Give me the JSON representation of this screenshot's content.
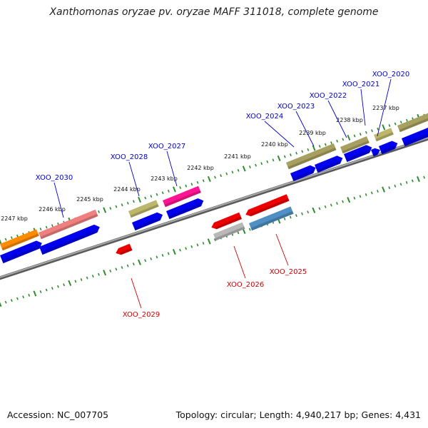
{
  "title": "Xanthomonas oryzae pv. oryzae MAFF 311018, complete genome",
  "footer": {
    "accession": "Accession: NC_007705",
    "summary": "Topology: circular; Length: 4,940,217 bp; Genes: 4,431"
  },
  "colors": {
    "backbone": "#808080",
    "tick": "#2e8b2e",
    "plus_label": "#0000cc",
    "minus_label": "#cc0000"
  },
  "kbp_ticks": [
    {
      "label": "2247 kbp",
      "coord": 2247
    },
    {
      "label": "2246 kbp",
      "coord": 2246
    },
    {
      "label": "2245 kbp",
      "coord": 2245
    },
    {
      "label": "2244 kbp",
      "coord": 2244
    },
    {
      "label": "2243 kbp",
      "coord": 2243
    },
    {
      "label": "2242 kbp",
      "coord": 2242
    },
    {
      "label": "2241 kbp",
      "coord": 2241
    },
    {
      "label": "2240 kbp",
      "coord": 2240
    },
    {
      "label": "2239 kbp",
      "coord": 2239
    },
    {
      "label": "2238 kbp",
      "coord": 2238
    },
    {
      "label": "2237 kbp",
      "coord": 2237
    }
  ],
  "genes": [
    {
      "id": "XOO_2020",
      "strand": "+"
    },
    {
      "id": "XOO_2021",
      "strand": "+"
    },
    {
      "id": "XOO_2022",
      "strand": "+"
    },
    {
      "id": "XOO_2023",
      "strand": "+"
    },
    {
      "id": "XOO_2024",
      "strand": "+"
    },
    {
      "id": "XOO_2027",
      "strand": "+"
    },
    {
      "id": "XOO_2028",
      "strand": "+"
    },
    {
      "id": "XOO_2030",
      "strand": "+"
    },
    {
      "id": "XOO_2025",
      "strand": "-"
    },
    {
      "id": "XOO_2026",
      "strand": "-"
    },
    {
      "id": "XOO_2029",
      "strand": "-"
    }
  ]
}
